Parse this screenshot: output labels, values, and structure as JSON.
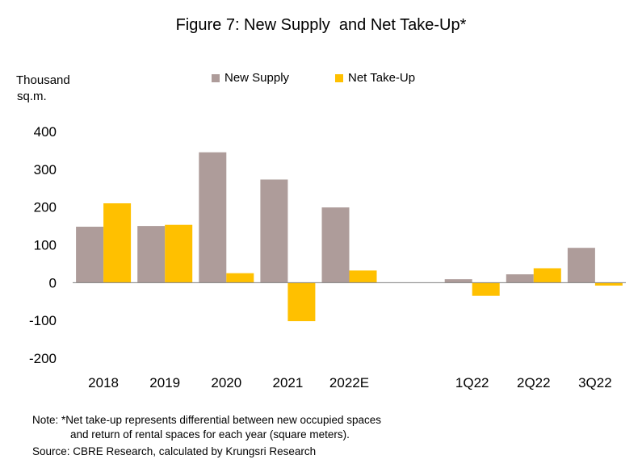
{
  "chart_data": {
    "type": "bar",
    "title": "Figure 7: New Supply  and Net Take-Up*",
    "ylabel": "Thousand sq.m.",
    "ylabel_lines": [
      "Thousand",
      "sq.m."
    ],
    "ylim": [
      -200,
      400
    ],
    "yticks": [
      400,
      300,
      200,
      100,
      0,
      -100,
      -200
    ],
    "categories": [
      "2018",
      "2019",
      "2020",
      "2021",
      "2022E",
      "",
      "1Q22",
      "2Q22",
      "3Q22"
    ],
    "series": [
      {
        "name": "New Supply",
        "color": "#AE9C9A",
        "values": [
          148,
          150,
          345,
          273,
          199,
          null,
          9,
          22,
          92
        ]
      },
      {
        "name": "Net Take-Up",
        "color": "#FFC000",
        "values": [
          210,
          153,
          25,
          -102,
          32,
          null,
          -35,
          38,
          -8
        ]
      }
    ],
    "legend_position": "top-center",
    "grid": false
  },
  "notes": {
    "line1": "Note: *Net take-up represents differential between new occupied spaces",
    "line2": "and return of rental spaces for each year (square meters).",
    "source": "Source: CBRE Research, calculated by Krungsri Research"
  }
}
